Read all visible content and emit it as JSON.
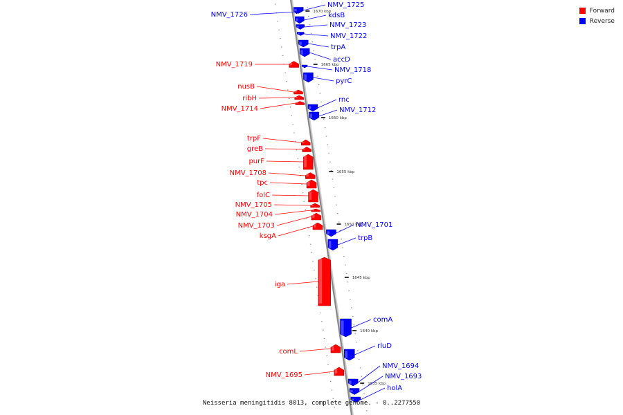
{
  "colors": {
    "forward": "#ff0000",
    "reverse": "#0000ff",
    "backbone": "#888888"
  },
  "legend": [
    {
      "label": "Forward",
      "color": "#ff0000"
    },
    {
      "label": "Reverse",
      "color": "#0000ff"
    }
  ],
  "caption": "Neisseria meningitidis 8013, complete genome. - 0..2277550",
  "ticks": [
    "1670 kbp",
    "1665 kbp",
    "1660 kbp",
    "1655 kbp",
    "1650 kbp",
    "1645 kbp",
    "1640 kbp",
    "1635 kbp"
  ],
  "genes": [
    {
      "name": "NMV_1726",
      "strand": "reverse"
    },
    {
      "name": "NMV_1725",
      "strand": "reverse"
    },
    {
      "name": "kdsB",
      "strand": "reverse"
    },
    {
      "name": "NMV_1723",
      "strand": "reverse"
    },
    {
      "name": "NMV_1722",
      "strand": "reverse"
    },
    {
      "name": "trpA",
      "strand": "reverse"
    },
    {
      "name": "accD",
      "strand": "reverse"
    },
    {
      "name": "NMV_1719",
      "strand": "forward"
    },
    {
      "name": "NMV_1718",
      "strand": "reverse"
    },
    {
      "name": "pyrC",
      "strand": "reverse"
    },
    {
      "name": "nusB",
      "strand": "forward"
    },
    {
      "name": "ribH",
      "strand": "forward"
    },
    {
      "name": "NMV_1714",
      "strand": "forward"
    },
    {
      "name": "rnc",
      "strand": "reverse"
    },
    {
      "name": "NMV_1712",
      "strand": "reverse"
    },
    {
      "name": "trpF",
      "strand": "forward"
    },
    {
      "name": "greB",
      "strand": "forward"
    },
    {
      "name": "purF",
      "strand": "forward"
    },
    {
      "name": "NMV_1708",
      "strand": "forward"
    },
    {
      "name": "tpc",
      "strand": "forward"
    },
    {
      "name": "folC",
      "strand": "forward"
    },
    {
      "name": "NMV_1705",
      "strand": "forward"
    },
    {
      "name": "NMV_1704",
      "strand": "forward"
    },
    {
      "name": "NMV_1703",
      "strand": "forward"
    },
    {
      "name": "ksgA",
      "strand": "forward"
    },
    {
      "name": "NMV_1701",
      "strand": "reverse"
    },
    {
      "name": "trpB",
      "strand": "reverse"
    },
    {
      "name": "iga",
      "strand": "forward"
    },
    {
      "name": "comA",
      "strand": "reverse"
    },
    {
      "name": "rluD",
      "strand": "reverse"
    },
    {
      "name": "comL",
      "strand": "forward"
    },
    {
      "name": "NMV_1695",
      "strand": "forward"
    },
    {
      "name": "NMV_1694",
      "strand": "reverse"
    },
    {
      "name": "NMV_1693",
      "strand": "reverse"
    },
    {
      "name": "holA",
      "strand": "reverse"
    }
  ]
}
